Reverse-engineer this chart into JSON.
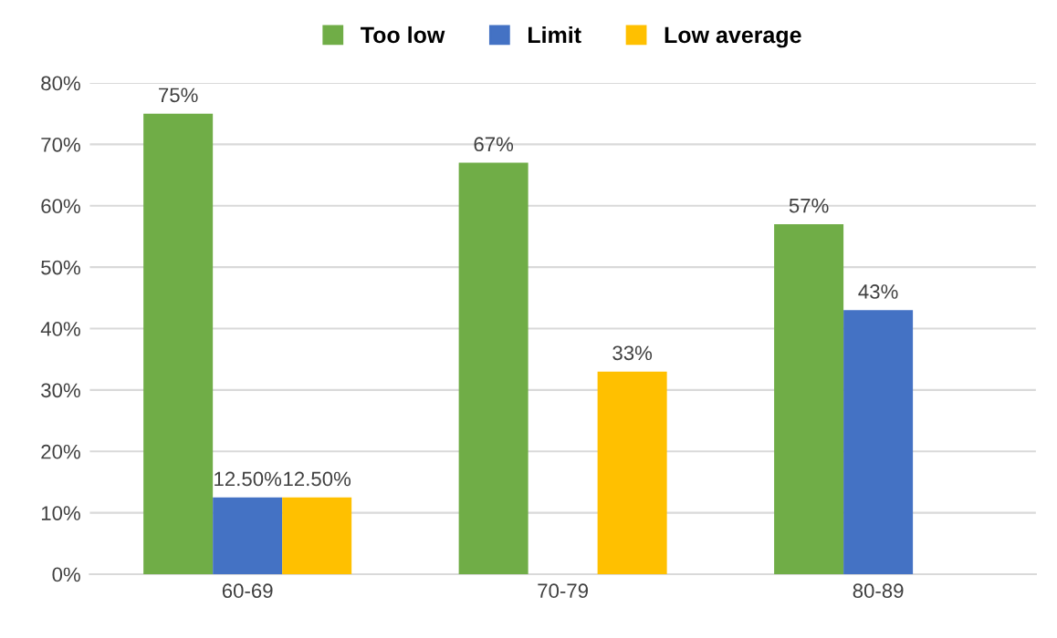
{
  "chart_data": {
    "type": "bar",
    "categories": [
      "60-69",
      "70-79",
      "80-89"
    ],
    "series": [
      {
        "name": "Too low",
        "color": "#70ad47",
        "values": [
          75,
          67,
          57
        ],
        "value_labels": [
          "75%",
          "67%",
          "57%"
        ]
      },
      {
        "name": "Limit",
        "color": "#4472c4",
        "values": [
          12.5,
          null,
          43
        ],
        "value_labels": [
          "12.50%",
          null,
          "43%"
        ]
      },
      {
        "name": "Low average",
        "color": "#ffc000",
        "values": [
          12.5,
          33,
          null
        ],
        "value_labels": [
          "12.50%",
          "33%",
          null
        ]
      }
    ],
    "ylim": [
      0,
      80
    ],
    "yticks": [
      {
        "value": 0,
        "label": "0%"
      },
      {
        "value": 10,
        "label": "10%"
      },
      {
        "value": 20,
        "label": "20%"
      },
      {
        "value": 30,
        "label": "30%"
      },
      {
        "value": 40,
        "label": "40%"
      },
      {
        "value": 50,
        "label": "50%"
      },
      {
        "value": 60,
        "label": "60%"
      },
      {
        "value": 70,
        "label": "70%"
      },
      {
        "value": 80,
        "label": "80%"
      }
    ],
    "grid": "y",
    "legend": "top"
  }
}
